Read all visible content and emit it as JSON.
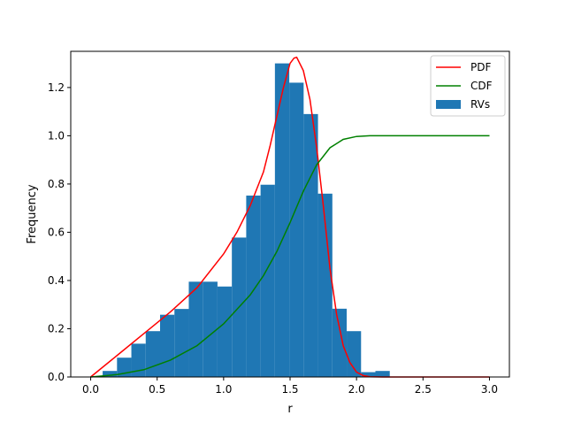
{
  "chart_data": {
    "type": "bar",
    "title": "",
    "xlabel": "r",
    "ylabel": "Frequency",
    "xlim": [
      -0.15,
      3.15
    ],
    "ylim": [
      0,
      1.35
    ],
    "xticks": [
      "0.0",
      "0.5",
      "1.0",
      "1.5",
      "2.0",
      "2.5",
      "3.0"
    ],
    "yticks": [
      "0.0",
      "0.2",
      "0.4",
      "0.6",
      "0.8",
      "1.0",
      "1.2"
    ],
    "grid": false,
    "legend_position": "top-right",
    "histogram": {
      "name": "RVs",
      "color": "#1f77b4",
      "bin_width": 0.108,
      "bin_lefts": [
        0.09,
        0.198,
        0.306,
        0.414,
        0.522,
        0.63,
        0.738,
        0.846,
        0.954,
        1.062,
        1.17,
        1.278,
        1.386,
        1.494,
        1.602,
        1.71,
        1.818,
        1.926,
        2.034,
        2.142
      ],
      "values": [
        0.025,
        0.08,
        0.138,
        0.19,
        0.258,
        0.282,
        0.395,
        0.395,
        0.375,
        0.578,
        0.752,
        0.797,
        1.3,
        1.22,
        1.09,
        0.76,
        0.283,
        0.19,
        0.02,
        0.025
      ]
    },
    "series": [
      {
        "name": "PDF",
        "color": "#ff0000",
        "x": [
          0.0,
          0.2,
          0.4,
          0.6,
          0.8,
          1.0,
          1.1,
          1.2,
          1.3,
          1.35,
          1.4,
          1.45,
          1.5,
          1.53,
          1.55,
          1.6,
          1.65,
          1.7,
          1.75,
          1.8,
          1.85,
          1.9,
          1.95,
          2.0,
          2.05,
          2.1,
          2.2,
          3.0
        ],
        "y": [
          0.0,
          0.09,
          0.18,
          0.27,
          0.37,
          0.51,
          0.6,
          0.71,
          0.85,
          0.96,
          1.08,
          1.2,
          1.3,
          1.322,
          1.325,
          1.27,
          1.15,
          0.95,
          0.71,
          0.45,
          0.26,
          0.13,
          0.06,
          0.02,
          0.006,
          0.001,
          0.0,
          0.0
        ]
      },
      {
        "name": "CDF",
        "color": "#008000",
        "x": [
          0.0,
          0.2,
          0.4,
          0.6,
          0.8,
          1.0,
          1.2,
          1.3,
          1.4,
          1.5,
          1.6,
          1.7,
          1.8,
          1.9,
          2.0,
          2.1,
          2.2,
          2.5,
          3.0
        ],
        "y": [
          0.0,
          0.01,
          0.03,
          0.07,
          0.13,
          0.22,
          0.34,
          0.42,
          0.52,
          0.64,
          0.77,
          0.88,
          0.95,
          0.985,
          0.997,
          1.0,
          1.0,
          1.0,
          1.0
        ]
      }
    ],
    "legend": [
      "PDF",
      "CDF",
      "RVs"
    ]
  }
}
